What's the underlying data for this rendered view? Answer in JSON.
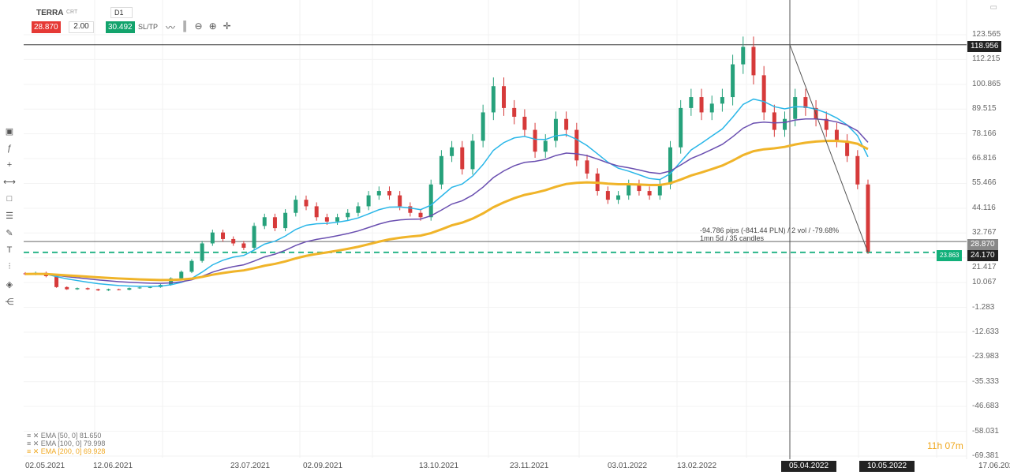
{
  "header": {
    "symbol": "TERRA",
    "type": "CRT",
    "timeframe": "D1",
    "bid": "28.870",
    "quantity": "2.00",
    "ask": "30.492",
    "sltp": "SL/TP"
  },
  "toolbar": [
    "line-chart-icon",
    "candles-icon",
    "zoom-out-icon",
    "zoom-in-icon",
    "crosshair-icon"
  ],
  "sidebar": [
    "screen-icon",
    "fx-icon",
    "plus-icon",
    "line-tool-icon",
    "rectangle-icon",
    "fib-icon",
    "pen-icon",
    "text-icon",
    "layers-icon",
    "objects-icon",
    "share-icon"
  ],
  "legend": [
    {
      "label": "EMA [50, 0] 81.650",
      "color": "#29b6e8"
    },
    {
      "label": "EMA [100, 0] 79.998",
      "color": "#6a4fb0"
    },
    {
      "label": "EMA [200, 0] 69.928",
      "color": "#f0b429"
    }
  ],
  "measure": {
    "line1": "-94.786 pips (-841.44 PLN) / 2 vol / -79.68%",
    "line2": "1mn 5d / 35 candles"
  },
  "timer": "11h 07m",
  "chart_data": {
    "type": "candlestick",
    "x_ticks": [
      "02.05.2021",
      "12.06.2021",
      "23.07.2021",
      "02.09.2021",
      "13.10.2021",
      "23.11.2021",
      "03.01.2022",
      "13.02.2022",
      "05.04.2022",
      "10.05.2022",
      "17.06.2022"
    ],
    "y_ticks": [
      "123.565",
      "112.215",
      "100.865",
      "89.515",
      "78.166",
      "66.816",
      "55.466",
      "44.116",
      "32.767",
      "21.417",
      "10.067",
      "-1.283",
      "-12.633",
      "-23.983",
      "-35.333",
      "-46.683",
      "-58.031",
      "-69.381"
    ],
    "ylim": [
      -69.381,
      123.565
    ],
    "x_range": [
      "02.05.2021",
      "17.06.2022"
    ],
    "price_labels": {
      "high_line": "118.956",
      "bid_line": "28.870",
      "current": "24.170",
      "target": "23.863"
    },
    "closes": [
      14,
      14.5,
      13,
      8,
      7,
      7.5,
      7,
      6.5,
      7,
      6.8,
      7.5,
      7.8,
      8,
      9,
      12,
      15,
      20,
      28,
      33,
      30,
      28,
      26,
      36,
      40,
      35,
      42,
      48,
      45,
      40,
      38,
      40,
      42,
      45,
      50,
      52,
      50,
      45,
      42,
      40,
      55,
      68,
      72,
      62,
      75,
      88,
      100,
      90,
      86,
      80,
      70,
      75,
      85,
      80,
      66,
      60,
      52,
      48,
      50,
      55,
      52,
      50,
      55,
      72,
      90,
      95,
      88,
      92,
      95,
      110,
      118,
      105,
      88,
      80,
      85,
      95,
      90,
      85,
      80,
      75,
      68,
      55,
      24.17
    ],
    "colors": {
      "up": "#26a17b",
      "down": "#d63a3a"
    }
  }
}
